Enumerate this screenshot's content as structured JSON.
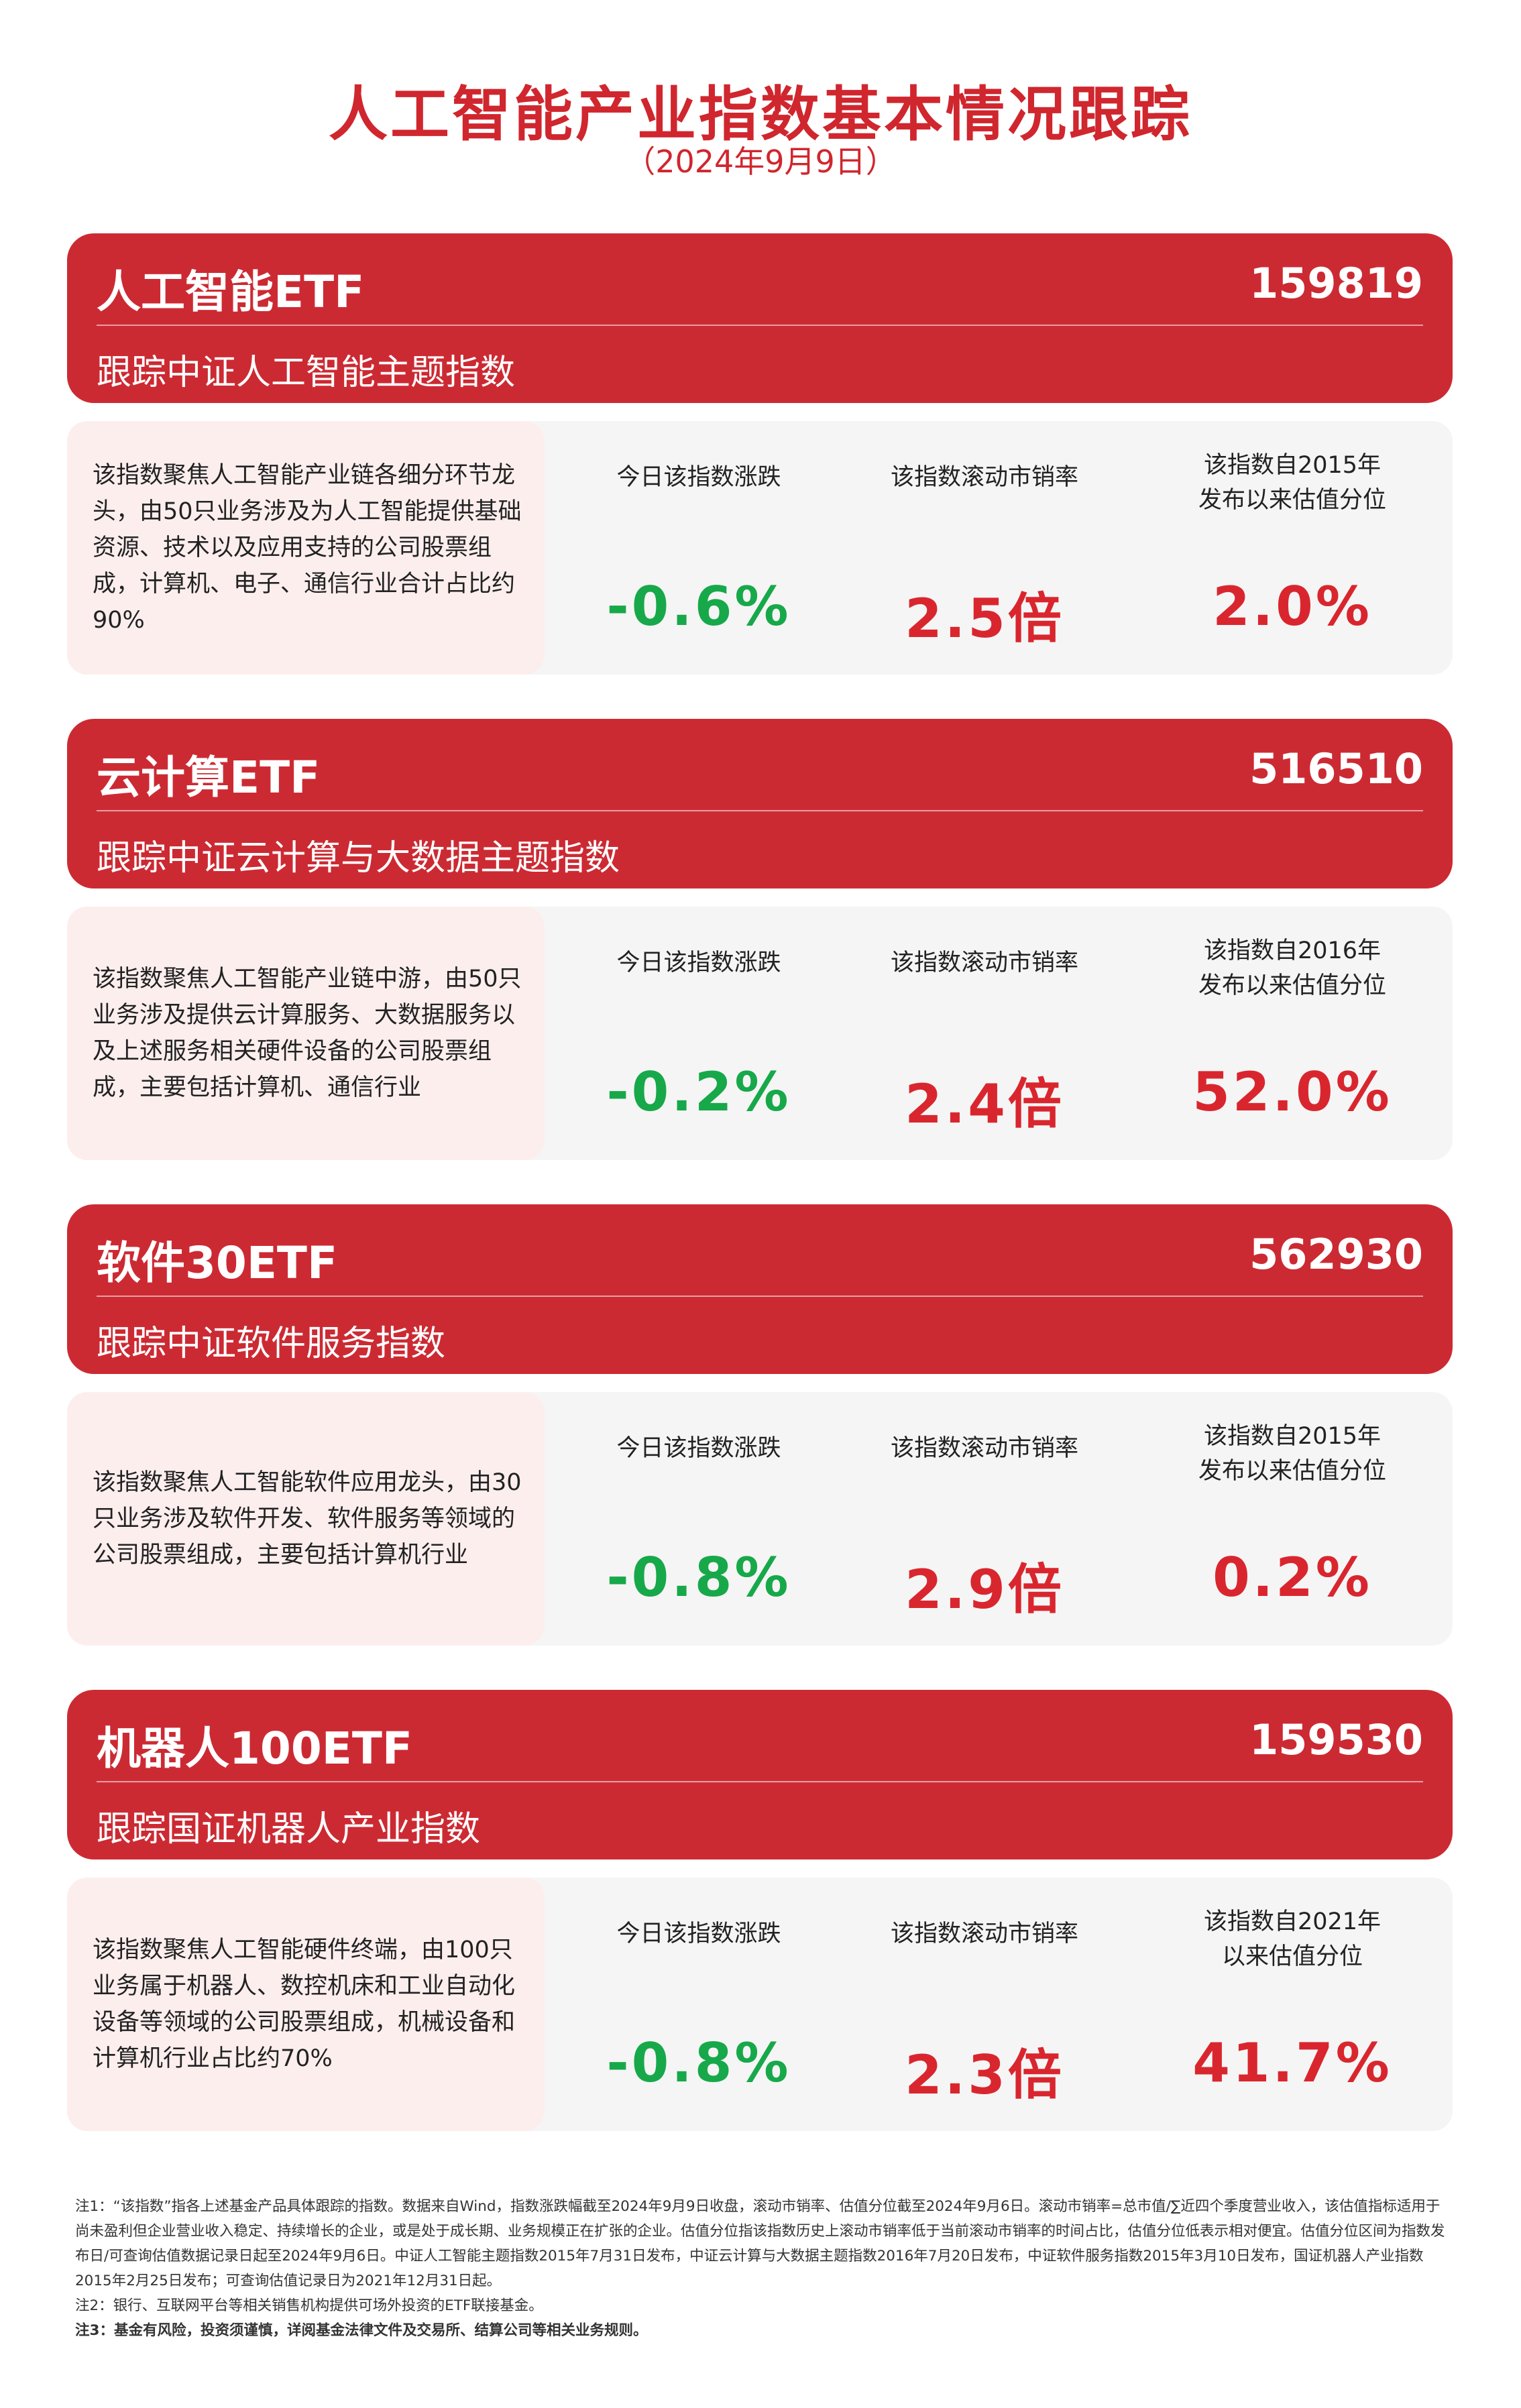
{
  "header": {
    "title": "人工智能产业指数基本情况跟踪",
    "date": "（2024年9月9日）"
  },
  "colors": {
    "header_red": "#cc2a33",
    "down_green": "#17a84a",
    "value_red": "#d9262e",
    "desc_bg": "#fdeeee",
    "panel_bg": "#f5f5f5"
  },
  "funds": [
    {
      "name": "人工智能ETF",
      "code": "159819",
      "tracks": "跟踪中证人工智能主题指数",
      "description": "该指数聚焦人工智能产业链各细分环节龙头，由50只业务涉及为人工智能提供基础资源、技术以及应用支持的公司股票组成，计算机、电子、通信行业合计占比约90%",
      "metrics": [
        {
          "label": "今日该指数涨跌",
          "value": "-0.6%",
          "trend": "down"
        },
        {
          "label": "该指数滚动市销率",
          "value": "2.5倍",
          "trend": "neutral"
        },
        {
          "label": "该指数自2015年发布以来估值分位",
          "value": "2.0%",
          "trend": "neutral"
        }
      ]
    },
    {
      "name": "云计算ETF",
      "code": "516510",
      "tracks": "跟踪中证云计算与大数据主题指数",
      "description": "该指数聚焦人工智能产业链中游，由50只业务涉及提供云计算服务、大数据服务以及上述服务相关硬件设备的公司股票组成，主要包括计算机、通信行业",
      "metrics": [
        {
          "label": "今日该指数涨跌",
          "value": "-0.2%",
          "trend": "down"
        },
        {
          "label": "该指数滚动市销率",
          "value": "2.4倍",
          "trend": "neutral"
        },
        {
          "label": "该指数自2016年发布以来估值分位",
          "value": "52.0%",
          "trend": "neutral"
        }
      ]
    },
    {
      "name": "软件30ETF",
      "code": "562930",
      "tracks": "跟踪中证软件服务指数",
      "description": "该指数聚焦人工智能软件应用龙头，由30只业务涉及软件开发、软件服务等领域的公司股票组成，主要包括计算机行业",
      "metrics": [
        {
          "label": "今日该指数涨跌",
          "value": "-0.8%",
          "trend": "down"
        },
        {
          "label": "该指数滚动市销率",
          "value": "2.9倍",
          "trend": "neutral"
        },
        {
          "label": "该指数自2015年发布以来估值分位",
          "value": "0.2%",
          "trend": "neutral"
        }
      ]
    },
    {
      "name": "机器人100ETF",
      "code": "159530",
      "tracks": "跟踪国证机器人产业指数",
      "description": "该指数聚焦人工智能硬件终端，由100只业务属于机器人、数控机床和工业自动化设备等领域的公司股票组成，机械设备和计算机行业占比约70%",
      "metrics": [
        {
          "label": "今日该指数涨跌",
          "value": "-0.8%",
          "trend": "down"
        },
        {
          "label": "该指数滚动市销率",
          "value": "2.3倍",
          "trend": "neutral"
        },
        {
          "label": "该指数自2021年以来估值分位",
          "value": "41.7%",
          "trend": "neutral"
        }
      ]
    }
  ],
  "notes": {
    "note1": "注1：“该指数”指各上述基金产品具体跟踪的指数。数据来自Wind，指数涨跌幅截至2024年9月9日收盘，滚动市销率、估值分位截至2024年9月6日。滚动市销率=总市值/∑近四个季度营业收入，该估值指标适用于尚未盈利但企业营业收入稳定、持续增长的企业，或是处于成长期、业务规模正在扩张的企业。估值分位指该指数历史上滚动市销率低于当前滚动市销率的时间占比，估值分位低表示相对便宜。估值分位区间为指数发布日/可查询估值数据记录日起至2024年9月6日。中证人工智能主题指数2015年7月31日发布，中证云计算与大数据主题指数2016年7月20日发布，中证软件服务指数2015年3月10日发布，国证机器人产业指数2015年2月25日发布；可查询估值记录日为2021年12月31日起。",
    "note2": "注2：银行、互联网平台等相关销售机构提供可场外投资的ETF联接基金。",
    "note3": "注3：基金有风险，投资须谨慎，详阅基金法律文件及交易所、结算公司等相关业务规则。"
  }
}
